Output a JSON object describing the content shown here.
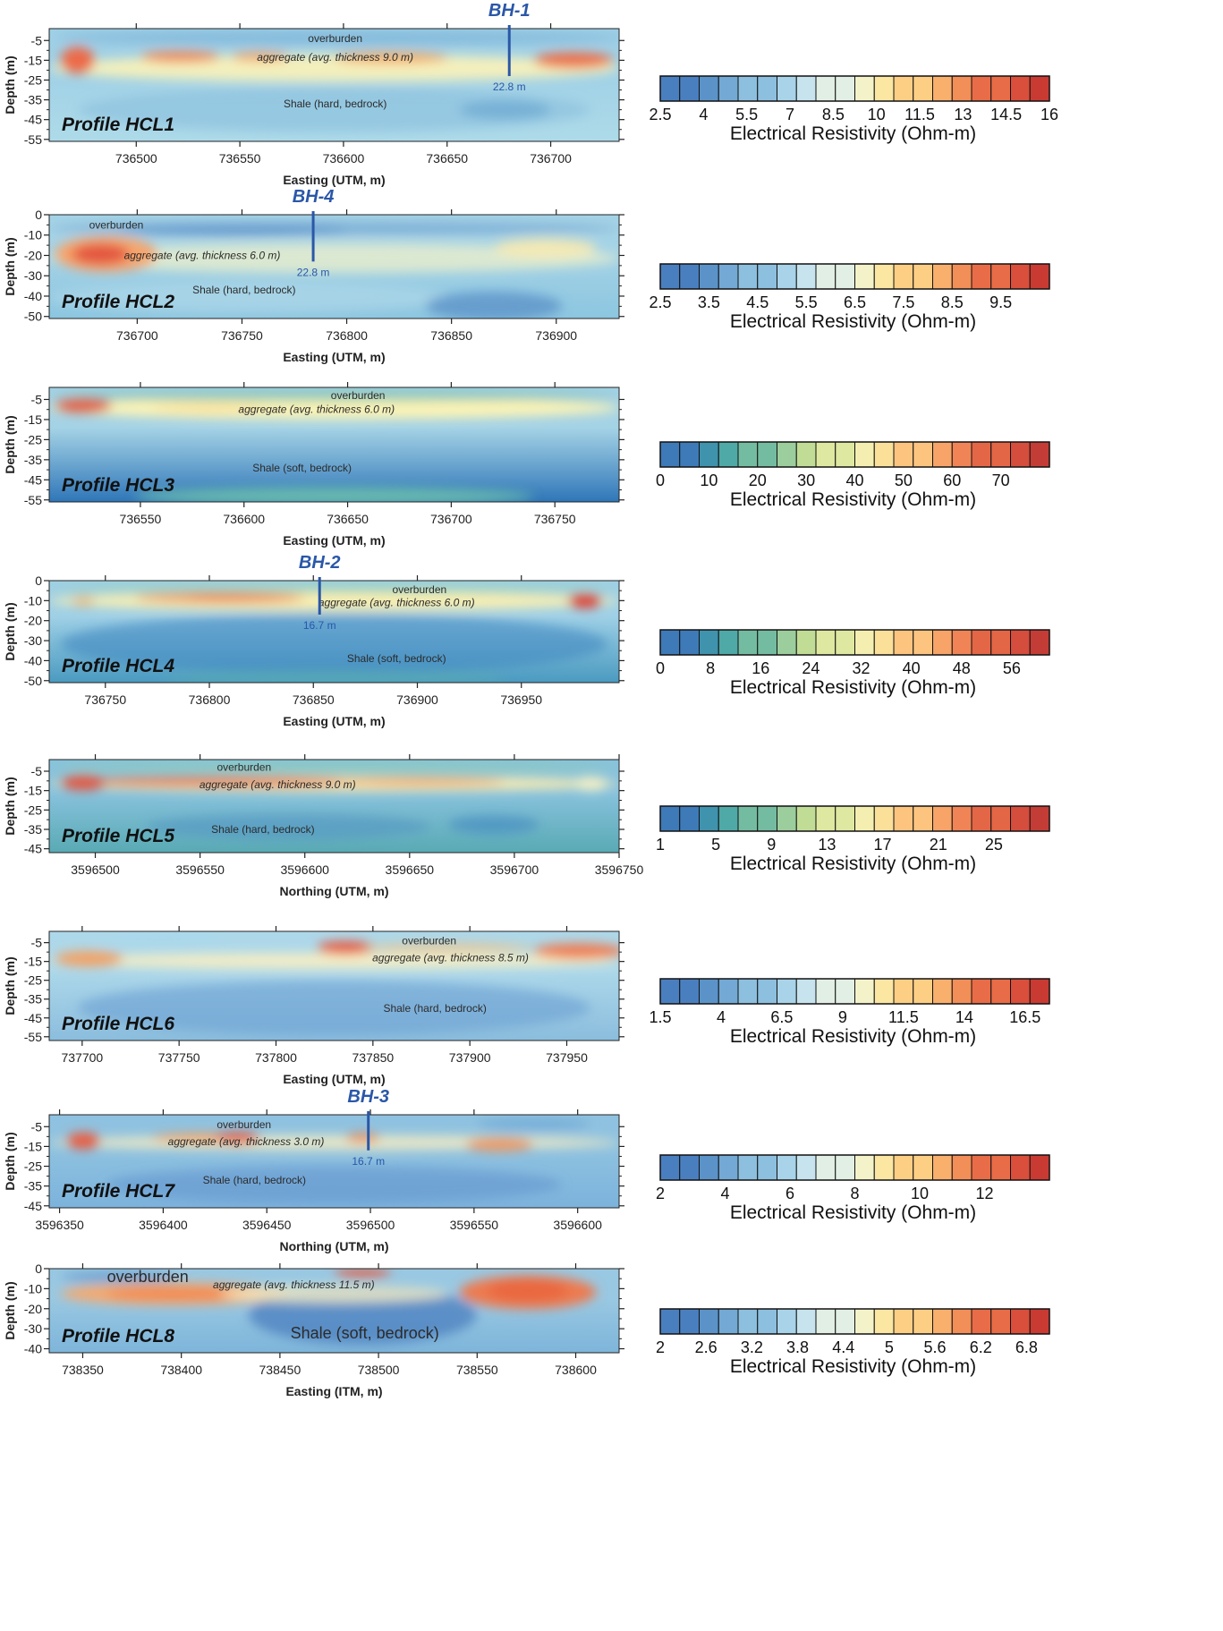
{
  "chart_data": [
    {
      "type": "heatmap",
      "title": "Profile HCL1",
      "xlabel": "Easting (UTM, m)",
      "ylabel": "Depth (m)",
      "xlim": [
        736458,
        736733
      ],
      "ylim": [
        -56,
        1
      ],
      "xticks": [
        736500,
        736550,
        736600,
        736650,
        736700
      ],
      "yticks": [
        -5,
        -15,
        -25,
        -35,
        -45,
        -55
      ],
      "borehole": {
        "name": "BH-1",
        "x": 736680,
        "depth_label": "22.8 m",
        "bottom": -23
      },
      "annotations": [
        {
          "text": "overburden",
          "x": 736596,
          "y": -4,
          "style": "normal"
        },
        {
          "text": "aggregate (avg. thickness 9.0 m)",
          "x": 736596,
          "y": -13.5,
          "style": "italic"
        },
        {
          "text": "Shale (hard, bedrock)",
          "x": 736596,
          "y": -37,
          "style": "normal"
        }
      ],
      "colorbar": {
        "label": "Electrical Resistivity (Ohm-m)",
        "ticks": [
          "2.5",
          "4",
          "5.5",
          "7",
          "8.5",
          "10",
          "11.5",
          "13",
          "14.5",
          "16"
        ],
        "min": 2.5,
        "max": 16,
        "palette": "div"
      }
    },
    {
      "type": "heatmap",
      "title": "Profile HCL2",
      "xlabel": "Easting (UTM, m)",
      "ylabel": "Depth (m)",
      "xlim": [
        736658,
        736930
      ],
      "ylim": [
        -51,
        0
      ],
      "xticks": [
        736700,
        736750,
        736800,
        736850,
        736900
      ],
      "yticks": [
        0,
        -10,
        -20,
        -30,
        -40,
        -50
      ],
      "borehole": {
        "name": "BH-4",
        "x": 736784,
        "depth_label": "22.8 m",
        "bottom": -23
      },
      "annotations": [
        {
          "text": "overburden",
          "x": 736690,
          "y": -5,
          "style": "normal"
        },
        {
          "text": "aggregate (avg. thickness 6.0 m)",
          "x": 736731,
          "y": -20,
          "style": "italic"
        },
        {
          "text": "Shale (hard, bedrock)",
          "x": 736751,
          "y": -37,
          "style": "normal"
        }
      ],
      "colorbar": {
        "label": "Electrical Resistivity (Ohm-m)",
        "ticks": [
          "2.5",
          "3.5",
          "4.5",
          "5.5",
          "6.5",
          "7.5",
          "8.5",
          "9.5"
        ],
        "min": 2.5,
        "max": 10.5,
        "palette": "div"
      }
    },
    {
      "type": "heatmap",
      "title": "Profile HCL3",
      "xlabel": "Easting (UTM, m)",
      "ylabel": "Depth (m)",
      "xlim": [
        736506,
        736781
      ],
      "ylim": [
        -56,
        1
      ],
      "xticks": [
        736550,
        736600,
        736650,
        736700,
        736750
      ],
      "yticks": [
        -5,
        -15,
        -25,
        -35,
        -45,
        -55
      ],
      "borehole": null,
      "annotations": [
        {
          "text": "overburden",
          "x": 736655,
          "y": -3,
          "style": "normal"
        },
        {
          "text": "aggregate (avg. thickness 6.0 m)",
          "x": 736635,
          "y": -10,
          "style": "italic"
        },
        {
          "text": "Shale (soft, bedrock)",
          "x": 736628,
          "y": -39,
          "style": "normal"
        }
      ],
      "colorbar": {
        "label": "Electrical Resistivity (Ohm-m)",
        "ticks": [
          "0",
          "10",
          "20",
          "30",
          "40",
          "50",
          "60",
          "70"
        ],
        "min": 0,
        "max": 80,
        "palette": "teal"
      }
    },
    {
      "type": "heatmap",
      "title": "Profile HCL4",
      "xlabel": "Easting (UTM, m)",
      "ylabel": "Depth (m)",
      "xlim": [
        736723,
        736997
      ],
      "ylim": [
        -51,
        0
      ],
      "xticks": [
        736750,
        736800,
        736850,
        736900,
        736950
      ],
      "yticks": [
        0,
        -10,
        -20,
        -30,
        -40,
        -50
      ],
      "borehole": {
        "name": "BH-2",
        "x": 736853,
        "depth_label": "16.7 m",
        "bottom": -17
      },
      "annotations": [
        {
          "text": "overburden",
          "x": 736901,
          "y": -4.5,
          "style": "normal"
        },
        {
          "text": "aggregate (avg. thickness 6.0 m)",
          "x": 736890,
          "y": -11,
          "style": "italic"
        },
        {
          "text": "Shale (soft, bedrock)",
          "x": 736890,
          "y": -39,
          "style": "normal"
        }
      ],
      "colorbar": {
        "label": "Electrical Resistivity (Ohm-m)",
        "ticks": [
          "0",
          "8",
          "16",
          "24",
          "32",
          "40",
          "48",
          "56"
        ],
        "min": 0,
        "max": 62,
        "palette": "teal"
      }
    },
    {
      "type": "heatmap",
      "title": "Profile HCL5",
      "xlabel": "Northing (UTM, m)",
      "ylabel": "Depth (m)",
      "xlim": [
        3596478,
        3596750
      ],
      "ylim": [
        -47,
        1
      ],
      "xticks": [
        3596500,
        3596550,
        3596600,
        3596650,
        3596700,
        3596750
      ],
      "yticks": [
        -5,
        -15,
        -25,
        -35,
        -45
      ],
      "borehole": null,
      "annotations": [
        {
          "text": "overburden",
          "x": 3596571,
          "y": -3,
          "style": "normal"
        },
        {
          "text": "aggregate (avg. thickness 9.0 m)",
          "x": 3596587,
          "y": -12,
          "style": "italic"
        },
        {
          "text": "Shale (hard, bedrock)",
          "x": 3596580,
          "y": -35,
          "style": "normal"
        }
      ],
      "colorbar": {
        "label": "Electrical Resistivity (Ohm-m)",
        "ticks": [
          "1",
          "5",
          "9",
          "13",
          "17",
          "21",
          "25"
        ],
        "min": 1,
        "max": 29,
        "palette": "teal"
      }
    },
    {
      "type": "heatmap",
      "title": "Profile HCL6",
      "xlabel": "Easting (UTM, m)",
      "ylabel": "Depth (m)",
      "xlim": [
        737683,
        737977
      ],
      "ylim": [
        -57,
        1
      ],
      "xticks": [
        737700,
        737750,
        737800,
        737850,
        737900,
        737950
      ],
      "yticks": [
        -5,
        -15,
        -25,
        -35,
        -45,
        -55
      ],
      "borehole": null,
      "annotations": [
        {
          "text": "overburden",
          "x": 737879,
          "y": -4,
          "style": "normal"
        },
        {
          "text": "aggregate (avg. thickness 8.5 m)",
          "x": 737890,
          "y": -13,
          "style": "italic"
        },
        {
          "text": "Shale (hard, bedrock)",
          "x": 737882,
          "y": -40,
          "style": "normal"
        }
      ],
      "colorbar": {
        "label": "Electrical Resistivity (Ohm-m)",
        "ticks": [
          "1.5",
          "4",
          "6.5",
          "9",
          "11.5",
          "14",
          "16.5"
        ],
        "min": 1.5,
        "max": 17.5,
        "palette": "div"
      }
    },
    {
      "type": "heatmap",
      "title": "Profile HCL7",
      "xlabel": "Northing (UTM, m)",
      "ylabel": "Depth (m)",
      "xlim": [
        3596345,
        3596620
      ],
      "ylim": [
        -46,
        1
      ],
      "xticks": [
        3596350,
        3596400,
        3596450,
        3596500,
        3596550,
        3596600
      ],
      "yticks": [
        -5,
        -15,
        -25,
        -35,
        -45
      ],
      "borehole": {
        "name": "BH-3",
        "x": 3596499,
        "depth_label": "16.7 m",
        "bottom": -17
      },
      "annotations": [
        {
          "text": "overburden",
          "x": 3596439,
          "y": -4,
          "style": "normal"
        },
        {
          "text": "aggregate (avg. thickness 3.0 m)",
          "x": 3596440,
          "y": -12.5,
          "style": "italic"
        },
        {
          "text": "Shale (hard, bedrock)",
          "x": 3596444,
          "y": -32,
          "style": "normal"
        }
      ],
      "colorbar": {
        "label": "Electrical Resistivity (Ohm-m)",
        "ticks": [
          "2",
          "4",
          "6",
          "8",
          "10",
          "12"
        ],
        "min": 2,
        "max": 14,
        "palette": "div"
      }
    },
    {
      "type": "heatmap",
      "title": "Profile HCL8",
      "xlabel": "Easting (ITM, m)",
      "ylabel": "Depth (m)",
      "xlim": [
        738333,
        738622
      ],
      "ylim": [
        -42,
        0
      ],
      "xticks": [
        738350,
        738400,
        738450,
        738500,
        738550,
        738600
      ],
      "yticks": [
        0,
        -10,
        -20,
        -30,
        -40
      ],
      "borehole": null,
      "annotations": [
        {
          "text": "overburden",
          "x": 738383,
          "y": -5,
          "style": "normal"
        },
        {
          "text": "aggregate (avg. thickness 11.5 m)",
          "x": 738457,
          "y": -8,
          "style": "italic"
        },
        {
          "text": "Shale (soft, bedrock)",
          "x": 738493,
          "y": -33,
          "style": "normal"
        }
      ],
      "colorbar": {
        "label": "Electrical Resistivity (Ohm-m)",
        "ticks": [
          "2",
          "2.6",
          "3.2",
          "3.8",
          "4.4",
          "5",
          "5.6",
          "6.2",
          "6.8"
        ],
        "min": 2,
        "max": 7.1,
        "palette": "div"
      }
    }
  ]
}
